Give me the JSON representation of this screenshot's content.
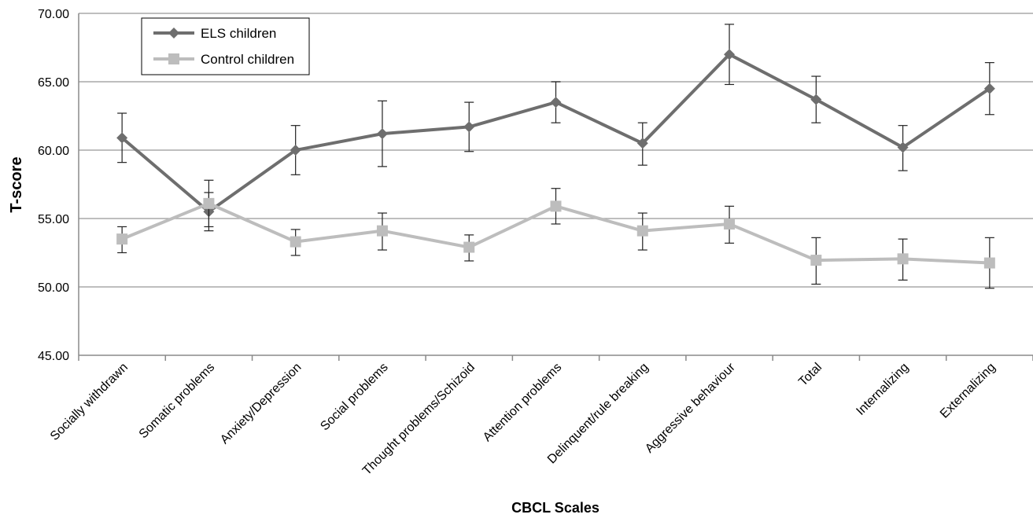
{
  "chart_data": {
    "type": "line",
    "xlabel": "CBCL Scales",
    "ylabel": "T-score",
    "ylim": [
      45,
      70
    ],
    "yticks": [
      "45.00",
      "50.00",
      "55.00",
      "60.00",
      "65.00",
      "70.00"
    ],
    "grid": "horizontal",
    "legend_position": "top-left",
    "categories": [
      "Socially withdrawn",
      "Somatic problems",
      "Anxiety/Depression",
      "Social problems",
      "Thought problems/Schizoid",
      "Attention problems",
      "Delinquent/rule breaking",
      "Aggressive behaviour",
      "Total",
      "Internalizing",
      "Externalizing"
    ],
    "series": [
      {
        "name": "ELS children",
        "color": "#6e6e6e",
        "marker": "diamond",
        "values": [
          60.9,
          55.5,
          60.0,
          61.2,
          61.7,
          63.5,
          60.5,
          67.0,
          63.7,
          60.2,
          64.5
        ],
        "error_low": [
          59.1,
          54.1,
          58.2,
          58.8,
          59.9,
          62.0,
          58.9,
          64.8,
          62.0,
          58.5,
          62.6
        ],
        "error_high": [
          62.7,
          56.9,
          61.8,
          63.6,
          63.5,
          65.0,
          62.0,
          69.2,
          65.4,
          61.8,
          66.4
        ]
      },
      {
        "name": "Control children",
        "color": "#bdbdbd",
        "marker": "square",
        "values": [
          53.5,
          56.1,
          53.3,
          54.1,
          52.9,
          55.9,
          54.1,
          54.6,
          51.95,
          52.05,
          51.75
        ],
        "error_low": [
          52.5,
          54.4,
          52.3,
          52.7,
          51.9,
          54.6,
          52.7,
          53.2,
          50.2,
          50.5,
          49.9
        ],
        "error_high": [
          54.4,
          57.8,
          54.2,
          55.4,
          53.8,
          57.2,
          55.4,
          55.9,
          53.6,
          53.5,
          53.6
        ]
      }
    ]
  }
}
